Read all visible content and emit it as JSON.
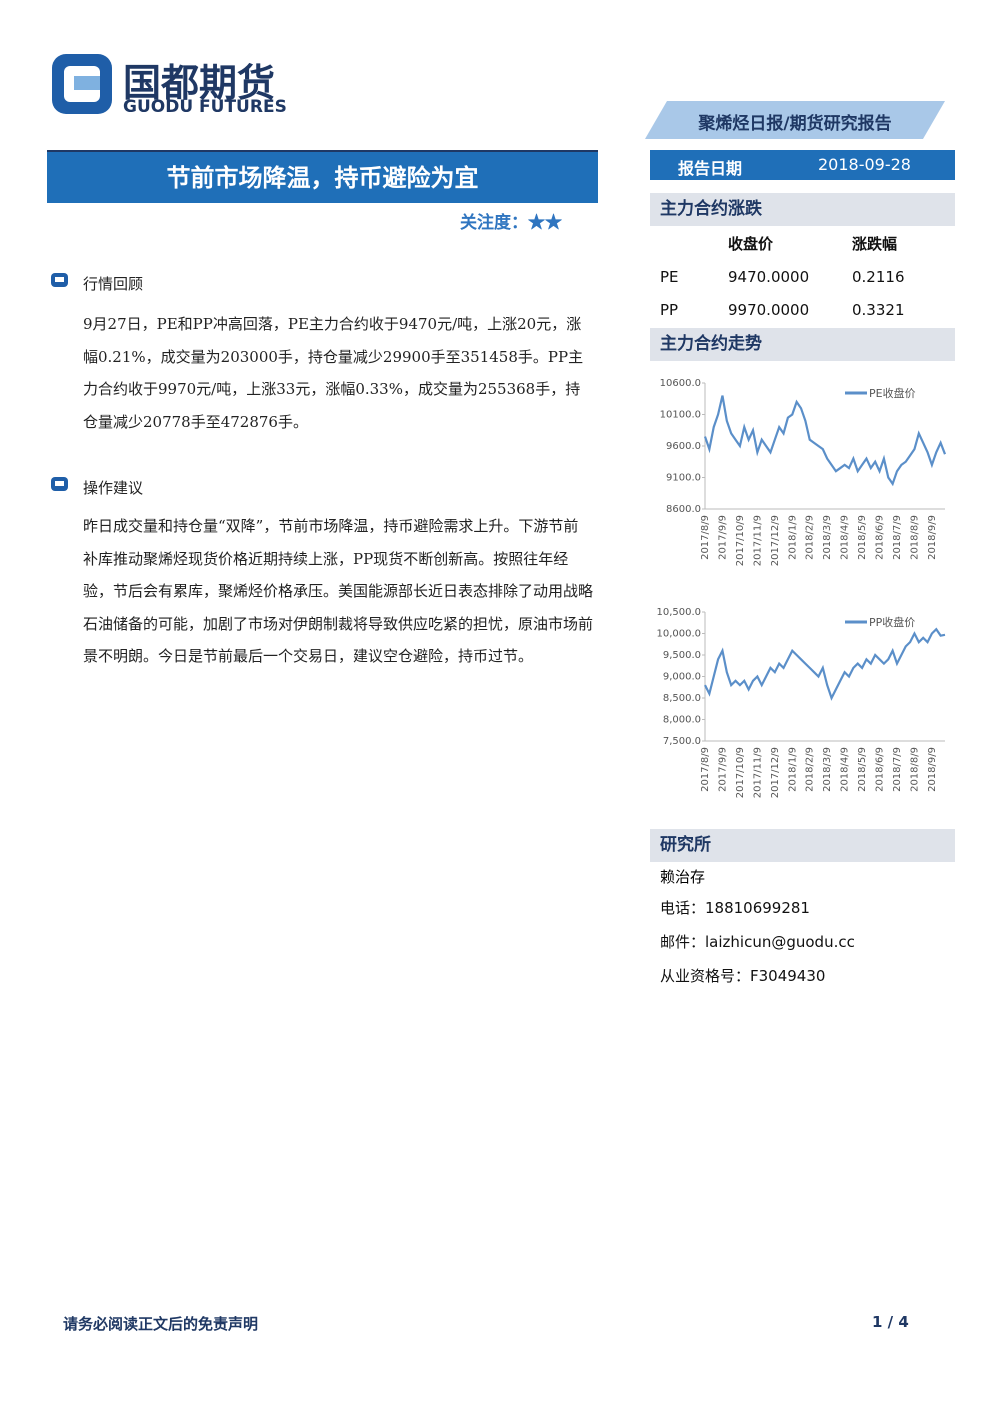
{
  "header": {
    "logo_cn": "国都期货",
    "logo_en": "GUODU FUTURES",
    "report_type": "聚烯烃日报/期货研究报告",
    "title": "节前市场降温，持币避险为宜",
    "attention_label": "关注度：",
    "stars": "★★",
    "report_date_label": "报告日期",
    "report_date": "2018-09-28"
  },
  "sections": [
    {
      "heading": "行情回顾",
      "body": "9月27日，PE和PP冲高回落，PE主力合约收于9470元/吨，上涨20元，涨幅0.21%，成交量为203000手，持仓量减少29900手至351458手。PP主力合约收于9970元/吨，上涨33元，涨幅0.33%，成交量为255368手，持仓量减少20778手至472876手。"
    },
    {
      "heading": "操作建议",
      "body": "昨日成交量和持仓量“双降”，节前市场降温，持币避险需求上升。下游节前补库推动聚烯烃现货价格近期持续上涨，PP现货不断创新高。按照往年经验，节后会有累库，聚烯烃价格承压。美国能源部长近日表态排除了动用战略石油储备的可能，加剧了市场对伊朗制裁将导致供应吃紧的担忧，原油市场前景不明朗。今日是节前最后一个交易日，建议空仓避险，持币过节。"
    }
  ],
  "sidebar": {
    "change_title": "主力合约涨跌",
    "change_headers": [
      "收盘价",
      "涨跌幅"
    ],
    "change_rows": [
      [
        "PE",
        "9470.0000",
        "0.2116"
      ],
      [
        "PP",
        "9970.0000",
        "0.3321"
      ]
    ],
    "trend_title": "主力合约走势",
    "research_title": "研究所",
    "analyst": "赖治存",
    "phone": "电话：18810699281",
    "email": "邮件：laizhicun@guodu.cc",
    "license": "从业资格号：F3049430"
  },
  "charts": [
    {
      "type": "line",
      "categories": [
        "2017/8/9",
        null,
        null,
        null,
        "2017/9/9",
        null,
        null,
        null,
        "2017/10/9",
        null,
        null,
        null,
        "2017/11/9",
        null,
        null,
        null,
        "2017/12/9",
        null,
        null,
        null,
        "2018/1/9",
        null,
        null,
        null,
        "2018/2/9",
        null,
        null,
        null,
        "2018/3/9",
        null,
        null,
        null,
        "2018/4/9",
        null,
        null,
        null,
        "2018/5/9",
        null,
        null,
        null,
        "2018/6/9",
        null,
        null,
        null,
        "2018/7/9",
        null,
        null,
        null,
        "2018/8/9",
        null,
        null,
        null,
        "2018/9/9",
        null,
        null,
        null
      ],
      "series": [
        {
          "name": "PE收盘价",
          "color": "#5b8fc9",
          "values": [
            9750,
            9550,
            9900,
            10100,
            10400,
            10000,
            9800,
            9700,
            9600,
            9900,
            9700,
            9850,
            9500,
            9700,
            9600,
            9500,
            9700,
            9900,
            9800,
            10050,
            10100,
            10300,
            10200,
            10000,
            9700,
            9650,
            9600,
            9550,
            9400,
            9300,
            9200,
            9250,
            9300,
            9250,
            9400,
            9200,
            9300,
            9400,
            9250,
            9350,
            9200,
            9400,
            9100,
            9000,
            9200,
            9300,
            9350,
            9450,
            9550,
            9800,
            9650,
            9500,
            9300,
            9500,
            9650,
            9470
          ]
        }
      ],
      "ylim": [
        8600,
        10600
      ],
      "yticks": [
        {
          "value": 8600,
          "label": "8600.0"
        },
        {
          "value": 9100,
          "label": "9100.0"
        },
        {
          "value": 9600,
          "label": "9600.0"
        },
        {
          "value": 10100,
          "label": "10100.0"
        },
        {
          "value": 10600,
          "label": "10600.0"
        }
      ],
      "legend": "top-right"
    },
    {
      "type": "line",
      "categories": [
        "2017/8/9",
        null,
        null,
        null,
        "2017/9/9",
        null,
        null,
        null,
        "2017/10/9",
        null,
        null,
        null,
        "2017/11/9",
        null,
        null,
        null,
        "2017/12/9",
        null,
        null,
        null,
        "2018/1/9",
        null,
        null,
        null,
        "2018/2/9",
        null,
        null,
        null,
        "2018/3/9",
        null,
        null,
        null,
        "2018/4/9",
        null,
        null,
        null,
        "2018/5/9",
        null,
        null,
        null,
        "2018/6/9",
        null,
        null,
        null,
        "2018/7/9",
        null,
        null,
        null,
        "2018/8/9",
        null,
        null,
        null,
        "2018/9/9",
        null,
        null,
        null
      ],
      "series": [
        {
          "name": "PP收盘价",
          "color": "#5b8fc9",
          "values": [
            8800,
            8600,
            9000,
            9400,
            9600,
            9100,
            8800,
            8900,
            8800,
            8900,
            8700,
            8900,
            9000,
            8800,
            9000,
            9200,
            9100,
            9300,
            9200,
            9400,
            9600,
            9500,
            9400,
            9300,
            9200,
            9100,
            9000,
            9200,
            8800,
            8500,
            8700,
            8900,
            9100,
            9000,
            9200,
            9300,
            9200,
            9400,
            9300,
            9500,
            9400,
            9300,
            9400,
            9600,
            9300,
            9500,
            9700,
            9800,
            10000,
            9800,
            9900,
            9800,
            10000,
            10100,
            9950,
            9970
          ]
        }
      ],
      "ylim": [
        7500,
        10500
      ],
      "yticks": [
        {
          "value": 7500,
          "label": "7,500.0"
        },
        {
          "value": 8000,
          "label": "8,000.0"
        },
        {
          "value": 8500,
          "label": "8,500.0"
        },
        {
          "value": 9000,
          "label": "9,000.0"
        },
        {
          "value": 9500,
          "label": "9,500.0"
        },
        {
          "value": 10000,
          "label": "10,000.0"
        },
        {
          "value": 10500,
          "label": "10,500.0"
        }
      ],
      "legend": "top-right"
    }
  ],
  "footer": {
    "disclaimer": "请务必阅读正文后的免责声明",
    "page": "1 / 4"
  }
}
